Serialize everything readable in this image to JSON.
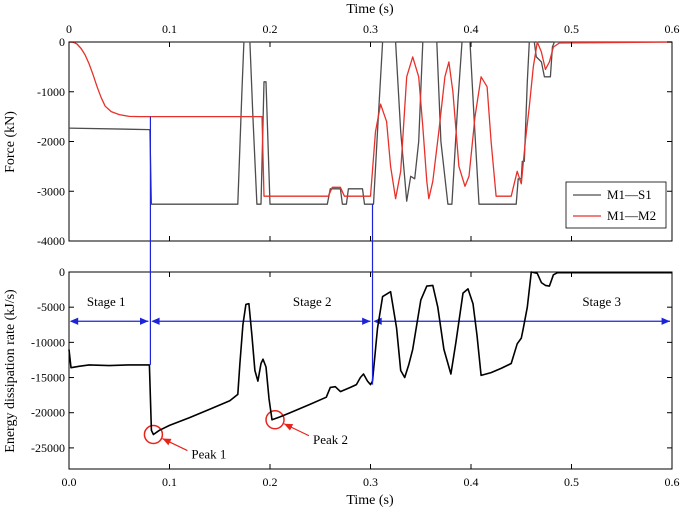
{
  "chart_data": [
    {
      "type": "line",
      "title": "",
      "xlabel": "Time (s)",
      "ylabel": "Force (kN)",
      "xlim": [
        0,
        0.6
      ],
      "ylim": [
        -4000,
        0
      ],
      "xticks": [
        0,
        0.1,
        0.2,
        0.3,
        0.4,
        0.5,
        0.6
      ],
      "xtick_labels": [
        "0",
        "0.1",
        "0.2",
        "0.3",
        "0.4",
        "0.5",
        "0.6"
      ],
      "yticks": [
        0,
        -1000,
        -2000,
        -3000,
        -4000
      ],
      "ytick_labels": [
        "0",
        "-1000",
        "-2000",
        "-3000",
        "-4000"
      ],
      "legend_position": "bottom-right",
      "series": [
        {
          "name": "M1—S1",
          "color": "#4d4d4d",
          "points": [
            [
              0.0,
              -1730
            ],
            [
              0.08,
              -1760
            ],
            [
              0.0805,
              -1760
            ],
            [
              0.082,
              -3260
            ],
            [
              0.168,
              -3260
            ],
            [
              0.172,
              -1000
            ],
            [
              0.174,
              0
            ],
            [
              0.18,
              0
            ],
            [
              0.183,
              -1500
            ],
            [
              0.187,
              -3260
            ],
            [
              0.191,
              -3260
            ],
            [
              0.194,
              -800
            ],
            [
              0.196,
              -800
            ],
            [
              0.2,
              -3260
            ],
            [
              0.257,
              -3260
            ],
            [
              0.26,
              -2950
            ],
            [
              0.27,
              -2950
            ],
            [
              0.272,
              -3260
            ],
            [
              0.276,
              -3260
            ],
            [
              0.278,
              -2950
            ],
            [
              0.292,
              -2950
            ],
            [
              0.294,
              -3260
            ],
            [
              0.303,
              -3260
            ],
            [
              0.307,
              -1800
            ],
            [
              0.312,
              0
            ],
            [
              0.325,
              0
            ],
            [
              0.33,
              -1800
            ],
            [
              0.336,
              -3200
            ],
            [
              0.34,
              -2700
            ],
            [
              0.344,
              -2750
            ],
            [
              0.348,
              -2000
            ],
            [
              0.352,
              0
            ],
            [
              0.366,
              0
            ],
            [
              0.37,
              -2000
            ],
            [
              0.377,
              -3260
            ],
            [
              0.381,
              -3260
            ],
            [
              0.387,
              -1200
            ],
            [
              0.391,
              0
            ],
            [
              0.399,
              0
            ],
            [
              0.403,
              -1500
            ],
            [
              0.408,
              -3260
            ],
            [
              0.44,
              -3260
            ],
            [
              0.445,
              -3260
            ],
            [
              0.447,
              -2750
            ],
            [
              0.45,
              -2750
            ],
            [
              0.451,
              -2400
            ],
            [
              0.453,
              -2400
            ],
            [
              0.456,
              -800
            ],
            [
              0.458,
              0
            ],
            [
              0.463,
              0
            ],
            [
              0.465,
              -300
            ],
            [
              0.47,
              -400
            ],
            [
              0.473,
              -700
            ],
            [
              0.476,
              -700
            ],
            [
              0.479,
              -700
            ],
            [
              0.481,
              -100
            ],
            [
              0.483,
              0
            ],
            [
              0.49,
              0
            ],
            [
              0.6,
              0
            ]
          ]
        },
        {
          "name": "M1—M2",
          "color": "#e8312a",
          "points": [
            [
              0.0,
              0
            ],
            [
              0.004,
              -5
            ],
            [
              0.008,
              -40
            ],
            [
              0.012,
              -130
            ],
            [
              0.016,
              -260
            ],
            [
              0.02,
              -440
            ],
            [
              0.024,
              -660
            ],
            [
              0.028,
              -900
            ],
            [
              0.032,
              -1120
            ],
            [
              0.036,
              -1290
            ],
            [
              0.042,
              -1400
            ],
            [
              0.05,
              -1460
            ],
            [
              0.06,
              -1495
            ],
            [
              0.07,
              -1500
            ],
            [
              0.1,
              -1500
            ],
            [
              0.192,
              -1500
            ],
            [
              0.194,
              -3100
            ],
            [
              0.258,
              -3100
            ],
            [
              0.262,
              -2920
            ],
            [
              0.27,
              -2920
            ],
            [
              0.274,
              -3100
            ],
            [
              0.29,
              -3100
            ],
            [
              0.3,
              -3100
            ],
            [
              0.305,
              -1800
            ],
            [
              0.31,
              -1250
            ],
            [
              0.316,
              -1600
            ],
            [
              0.32,
              -2500
            ],
            [
              0.325,
              -3150
            ],
            [
              0.33,
              -2600
            ],
            [
              0.336,
              -700
            ],
            [
              0.342,
              -300
            ],
            [
              0.348,
              -700
            ],
            [
              0.352,
              -1700
            ],
            [
              0.356,
              -2800
            ],
            [
              0.358,
              -3150
            ],
            [
              0.362,
              -2800
            ],
            [
              0.368,
              -1800
            ],
            [
              0.374,
              -700
            ],
            [
              0.378,
              -400
            ],
            [
              0.382,
              -1000
            ],
            [
              0.388,
              -2500
            ],
            [
              0.394,
              -2900
            ],
            [
              0.398,
              -2700
            ],
            [
              0.404,
              -1500
            ],
            [
              0.41,
              -700
            ],
            [
              0.416,
              -900
            ],
            [
              0.42,
              -2000
            ],
            [
              0.425,
              -3100
            ],
            [
              0.44,
              -3100
            ],
            [
              0.446,
              -2600
            ],
            [
              0.45,
              -2850
            ],
            [
              0.454,
              -2000
            ],
            [
              0.458,
              -1300
            ],
            [
              0.462,
              -500
            ],
            [
              0.466,
              0
            ],
            [
              0.47,
              -200
            ],
            [
              0.474,
              -550
            ],
            [
              0.478,
              -400
            ],
            [
              0.482,
              -100
            ],
            [
              0.488,
              -20
            ],
            [
              0.6,
              0
            ]
          ]
        }
      ]
    },
    {
      "type": "line",
      "title": "",
      "xlabel": "Time (s)",
      "ylabel": "Energy dissipation rate (kJ/s)",
      "xlim": [
        0,
        0.6
      ],
      "ylim": [
        -28000,
        0
      ],
      "xticks": [
        0,
        0.1,
        0.2,
        0.3,
        0.4,
        0.5,
        0.6
      ],
      "xtick_labels": [
        "0.0",
        "0.1",
        "0.2",
        "0.3",
        "0.4",
        "0.5",
        "0.6"
      ],
      "yticks": [
        0,
        -5000,
        -10000,
        -15000,
        -20000,
        -25000
      ],
      "ytick_labels": [
        "0",
        "-5000",
        "-10000",
        "-15000",
        "-20000",
        "-25000"
      ],
      "series": [
        {
          "name": "",
          "color": "#000000",
          "points": [
            [
              0.0,
              -11000
            ],
            [
              0.002,
              -13600
            ],
            [
              0.01,
              -13400
            ],
            [
              0.02,
              -13200
            ],
            [
              0.04,
              -13300
            ],
            [
              0.06,
              -13200
            ],
            [
              0.079,
              -13200
            ],
            [
              0.08,
              -13200
            ],
            [
              0.082,
              -22500
            ],
            [
              0.084,
              -23100
            ],
            [
              0.09,
              -22500
            ],
            [
              0.1,
              -21800
            ],
            [
              0.12,
              -20700
            ],
            [
              0.14,
              -19500
            ],
            [
              0.16,
              -18300
            ],
            [
              0.168,
              -17400
            ],
            [
              0.17,
              -13000
            ],
            [
              0.173,
              -7500
            ],
            [
              0.176,
              -4600
            ],
            [
              0.179,
              -4500
            ],
            [
              0.182,
              -9000
            ],
            [
              0.185,
              -14000
            ],
            [
              0.188,
              -15500
            ],
            [
              0.191,
              -13000
            ],
            [
              0.193,
              -12400
            ],
            [
              0.196,
              -13500
            ],
            [
              0.199,
              -18000
            ],
            [
              0.202,
              -21000
            ],
            [
              0.21,
              -20600
            ],
            [
              0.22,
              -20000
            ],
            [
              0.24,
              -18800
            ],
            [
              0.256,
              -17800
            ],
            [
              0.26,
              -16400
            ],
            [
              0.265,
              -16300
            ],
            [
              0.27,
              -17000
            ],
            [
              0.28,
              -16400
            ],
            [
              0.286,
              -16000
            ],
            [
              0.29,
              -15000
            ],
            [
              0.293,
              -14500
            ],
            [
              0.297,
              -15500
            ],
            [
              0.3,
              -16000
            ],
            [
              0.302,
              -15500
            ],
            [
              0.307,
              -8000
            ],
            [
              0.312,
              -3500
            ],
            [
              0.32,
              -2800
            ],
            [
              0.326,
              -8000
            ],
            [
              0.33,
              -14000
            ],
            [
              0.334,
              -15000
            ],
            [
              0.338,
              -13200
            ],
            [
              0.342,
              -11000
            ],
            [
              0.35,
              -4000
            ],
            [
              0.356,
              -2000
            ],
            [
              0.362,
              -1900
            ],
            [
              0.367,
              -5000
            ],
            [
              0.373,
              -11000
            ],
            [
              0.38,
              -14500
            ],
            [
              0.385,
              -10000
            ],
            [
              0.392,
              -3000
            ],
            [
              0.397,
              -2400
            ],
            [
              0.402,
              -4500
            ],
            [
              0.406,
              -9000
            ],
            [
              0.41,
              -14700
            ],
            [
              0.42,
              -14300
            ],
            [
              0.43,
              -13700
            ],
            [
              0.44,
              -13000
            ],
            [
              0.446,
              -10200
            ],
            [
              0.45,
              -9400
            ],
            [
              0.452,
              -8000
            ],
            [
              0.456,
              -5000
            ],
            [
              0.46,
              0
            ],
            [
              0.466,
              -200
            ],
            [
              0.47,
              -1500
            ],
            [
              0.474,
              -1900
            ],
            [
              0.478,
              -2000
            ],
            [
              0.482,
              -400
            ],
            [
              0.486,
              -100
            ],
            [
              0.6,
              -100
            ]
          ]
        }
      ],
      "annotations": {
        "stages": [
          {
            "label": "Stage 1",
            "x_start": 0.0,
            "x_end": 0.081,
            "y": -7000,
            "label_x": 0.037,
            "label_y": -4800
          },
          {
            "label": "Stage 2",
            "x_start": 0.081,
            "x_end": 0.302,
            "y": -7000,
            "label_x": 0.242,
            "label_y": -4800
          },
          {
            "label": "Stage 3",
            "x_start": 0.302,
            "x_end": 0.6,
            "y": -7000,
            "label_x": 0.53,
            "label_y": -4800
          }
        ],
        "peaks": [
          {
            "label": "Peak 1",
            "x": 0.084,
            "y": -23100
          },
          {
            "label": "Peak 2",
            "x": 0.205,
            "y": -21000
          }
        ],
        "connector_lines_x": [
          0.081,
          0.302
        ]
      }
    }
  ]
}
